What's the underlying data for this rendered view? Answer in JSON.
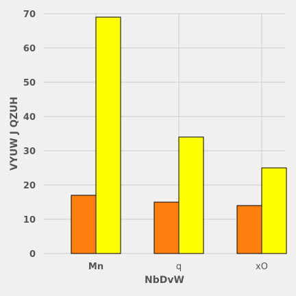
{
  "chart_data": {
    "type": "bar",
    "title": "",
    "xlabel": "NbDvW",
    "ylabel": "VYUW J QZUH",
    "categories": [
      "Mn",
      "q",
      "xO"
    ],
    "category_label_weights": [
      "bold",
      "normal",
      "normal"
    ],
    "series": [
      {
        "color": "#ff7f0e",
        "values": [
          17,
          15,
          14
        ]
      },
      {
        "color": "#ffff00",
        "values": [
          69,
          34,
          25
        ]
      }
    ],
    "ylim": [
      0,
      70
    ],
    "yticks": [
      0,
      10,
      20,
      30,
      40,
      50,
      60,
      70
    ],
    "grid": true,
    "legend": "none"
  }
}
